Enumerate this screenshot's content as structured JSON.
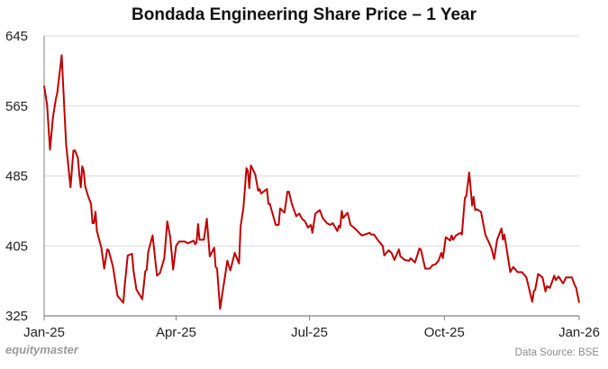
{
  "chart_data": {
    "type": "line",
    "title": "Bondada Engineering Share Price – 1 Year",
    "xlabel": "",
    "ylabel": "",
    "xlim": [
      "2025-01-01",
      "2026-01-01"
    ],
    "ylim": [
      325,
      645
    ],
    "y_ticks": [
      325,
      405,
      485,
      565,
      645
    ],
    "x_ticks": [
      {
        "date": "2025-01-01",
        "label": "Jan-25"
      },
      {
        "date": "2025-04-01",
        "label": "Apr-25"
      },
      {
        "date": "2025-07-01",
        "label": "Jul-25"
      },
      {
        "date": "2025-10-01",
        "label": "Oct-25"
      },
      {
        "date": "2026-01-01",
        "label": "Jan-26"
      }
    ],
    "grid": "horizontal",
    "legend": "none",
    "line_color": "#c00000",
    "series": [
      {
        "x": [
          "2025-01-01",
          "2025-01-03",
          "2025-01-05",
          "2025-01-07",
          "2025-01-09",
          "2025-01-10",
          "2025-01-13",
          "2025-01-14",
          "2025-01-16",
          "2025-01-19",
          "2025-01-21",
          "2025-01-22",
          "2025-01-24",
          "2025-01-25",
          "2025-01-26",
          "2025-01-27",
          "2025-01-28",
          "2025-01-29",
          "2025-01-31",
          "2025-02-02",
          "2025-02-03",
          "2025-02-04",
          "2025-02-05",
          "2025-02-06",
          "2025-02-09",
          "2025-02-11",
          "2025-02-13",
          "2025-02-14",
          "2025-02-17",
          "2025-02-20",
          "2025-02-24",
          "2025-02-25",
          "2025-02-27",
          "2025-03-02",
          "2025-03-03",
          "2025-03-05",
          "2025-03-09",
          "2025-03-11",
          "2025-03-12",
          "2025-03-13",
          "2025-03-16",
          "2025-03-19",
          "2025-03-21",
          "2025-03-24",
          "2025-03-26",
          "2025-03-28",
          "2025-03-30",
          "2025-04-01",
          "2025-04-03",
          "2025-04-07",
          "2025-04-09",
          "2025-04-13",
          "2025-04-14",
          "2025-04-15",
          "2025-04-16",
          "2025-04-17",
          "2025-04-20",
          "2025-04-22",
          "2025-04-24",
          "2025-04-27",
          "2025-04-28",
          "2025-04-29",
          "2025-05-01",
          "2025-05-06",
          "2025-05-08",
          "2025-05-11",
          "2025-05-14",
          "2025-05-15",
          "2025-05-17",
          "2025-05-19",
          "2025-05-20",
          "2025-05-21",
          "2025-05-22",
          "2025-05-25",
          "2025-05-27",
          "2025-05-28",
          "2025-05-29",
          "2025-06-02",
          "2025-06-03",
          "2025-06-04",
          "2025-06-08",
          "2025-06-10",
          "2025-06-11",
          "2025-06-14",
          "2025-06-16",
          "2025-06-17",
          "2025-06-19",
          "2025-06-22",
          "2025-06-24",
          "2025-06-26",
          "2025-06-28",
          "2025-06-30",
          "2025-07-02",
          "2025-07-03",
          "2025-07-05",
          "2025-07-08",
          "2025-07-10",
          "2025-07-13",
          "2025-07-15",
          "2025-07-17",
          "2025-07-20",
          "2025-07-21",
          "2025-07-22",
          "2025-07-23",
          "2025-07-24",
          "2025-07-27",
          "2025-07-29",
          "2025-08-01",
          "2025-08-05",
          "2025-08-06",
          "2025-08-11",
          "2025-08-12",
          "2025-08-14",
          "2025-08-17",
          "2025-08-20",
          "2025-08-21",
          "2025-08-24",
          "2025-08-26",
          "2025-08-28",
          "2025-08-31",
          "2025-09-01",
          "2025-09-04",
          "2025-09-07",
          "2025-09-08",
          "2025-09-11",
          "2025-09-14",
          "2025-09-15",
          "2025-09-18",
          "2025-09-21",
          "2025-09-23",
          "2025-09-25",
          "2025-09-27",
          "2025-09-29",
          "2025-09-30",
          "2025-10-02",
          "2025-10-05",
          "2025-10-06",
          "2025-10-07",
          "2025-10-09",
          "2025-10-12",
          "2025-10-13",
          "2025-10-15",
          "2025-10-16",
          "2025-10-18",
          "2025-10-20",
          "2025-10-21",
          "2025-10-22",
          "2025-10-23",
          "2025-10-26",
          "2025-10-29",
          "2025-11-02",
          "2025-11-04",
          "2025-11-06",
          "2025-11-09",
          "2025-11-10",
          "2025-11-11",
          "2025-11-15",
          "2025-11-17",
          "2025-11-20",
          "2025-11-23",
          "2025-11-26",
          "2025-11-30",
          "2025-12-01",
          "2025-12-02",
          "2025-12-04",
          "2025-12-07",
          "2025-12-09",
          "2025-12-10",
          "2025-12-12",
          "2025-12-15",
          "2025-12-16",
          "2025-12-18",
          "2025-12-21",
          "2025-12-23",
          "2025-12-27",
          "2025-12-29",
          "2025-12-30",
          "2026-01-01"
        ],
        "y": [
          588,
          566,
          515,
          552,
          573,
          580,
          623,
          587,
          521,
          472,
          514,
          514,
          506,
          486,
          472,
          496,
          491,
          473,
          462,
          453,
          431,
          431,
          444,
          422,
          403,
          379,
          401,
          400,
          381,
          348,
          340,
          360,
          394,
          396,
          376,
          355,
          344,
          376,
          378,
          398,
          417,
          371,
          374,
          391,
          433,
          415,
          378,
          405,
          410,
          410,
          408,
          411,
          407,
          409,
          430,
          412,
          412,
          436,
          393,
          403,
          381,
          379,
          333,
          388,
          377,
          397,
          385,
          427,
          449,
          494,
          491,
          471,
          497,
          487,
          468,
          470,
          465,
          470,
          453,
          453,
          429,
          429,
          448,
          443,
          467,
          467,
          453,
          439,
          442,
          436,
          433,
          426,
          429,
          420,
          442,
          446,
          437,
          431,
          429,
          431,
          422,
          428,
          426,
          445,
          437,
          443,
          429,
          425,
          418,
          417,
          420,
          418,
          418,
          411,
          405,
          394,
          400,
          397,
          389,
          401,
          393,
          389,
          388,
          391,
          386,
          402,
          401,
          379,
          379,
          383,
          384,
          388,
          397,
          391,
          415,
          411,
          417,
          412,
          417,
          420,
          418,
          460,
          462,
          489,
          451,
          461,
          446,
          447,
          444,
          418,
          403,
          390,
          412,
          425,
          412,
          418,
          375,
          381,
          375,
          375,
          369,
          341,
          353,
          355,
          373,
          369,
          353,
          359,
          357,
          371,
          366,
          370,
          362,
          369,
          369,
          360,
          357,
          340
        ]
      }
    ]
  },
  "footer": {
    "brand": "equitymaster",
    "source": "Data Source: BSE"
  }
}
